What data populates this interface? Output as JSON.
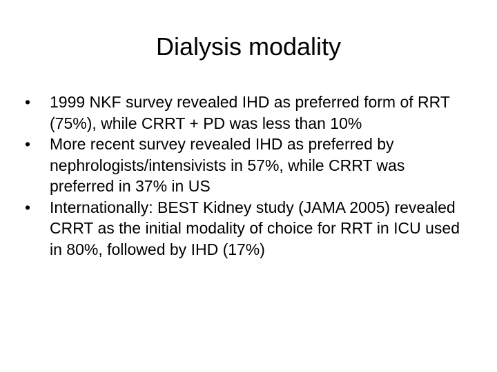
{
  "slide": {
    "title": "Dialysis modality",
    "bullet_symbol": "•",
    "bullets": [
      "1999 NKF survey revealed IHD as preferred form of RRT (75%), while CRRT + PD was less than 10%",
      "More recent survey revealed IHD as preferred by nephrologists/intensivists in 57%, while CRRT was preferred in 37% in US",
      "Internationally: BEST Kidney study (JAMA 2005) revealed CRRT as the initial modality of choice for RRT in ICU used in 80%, followed by IHD (17%)"
    ]
  }
}
